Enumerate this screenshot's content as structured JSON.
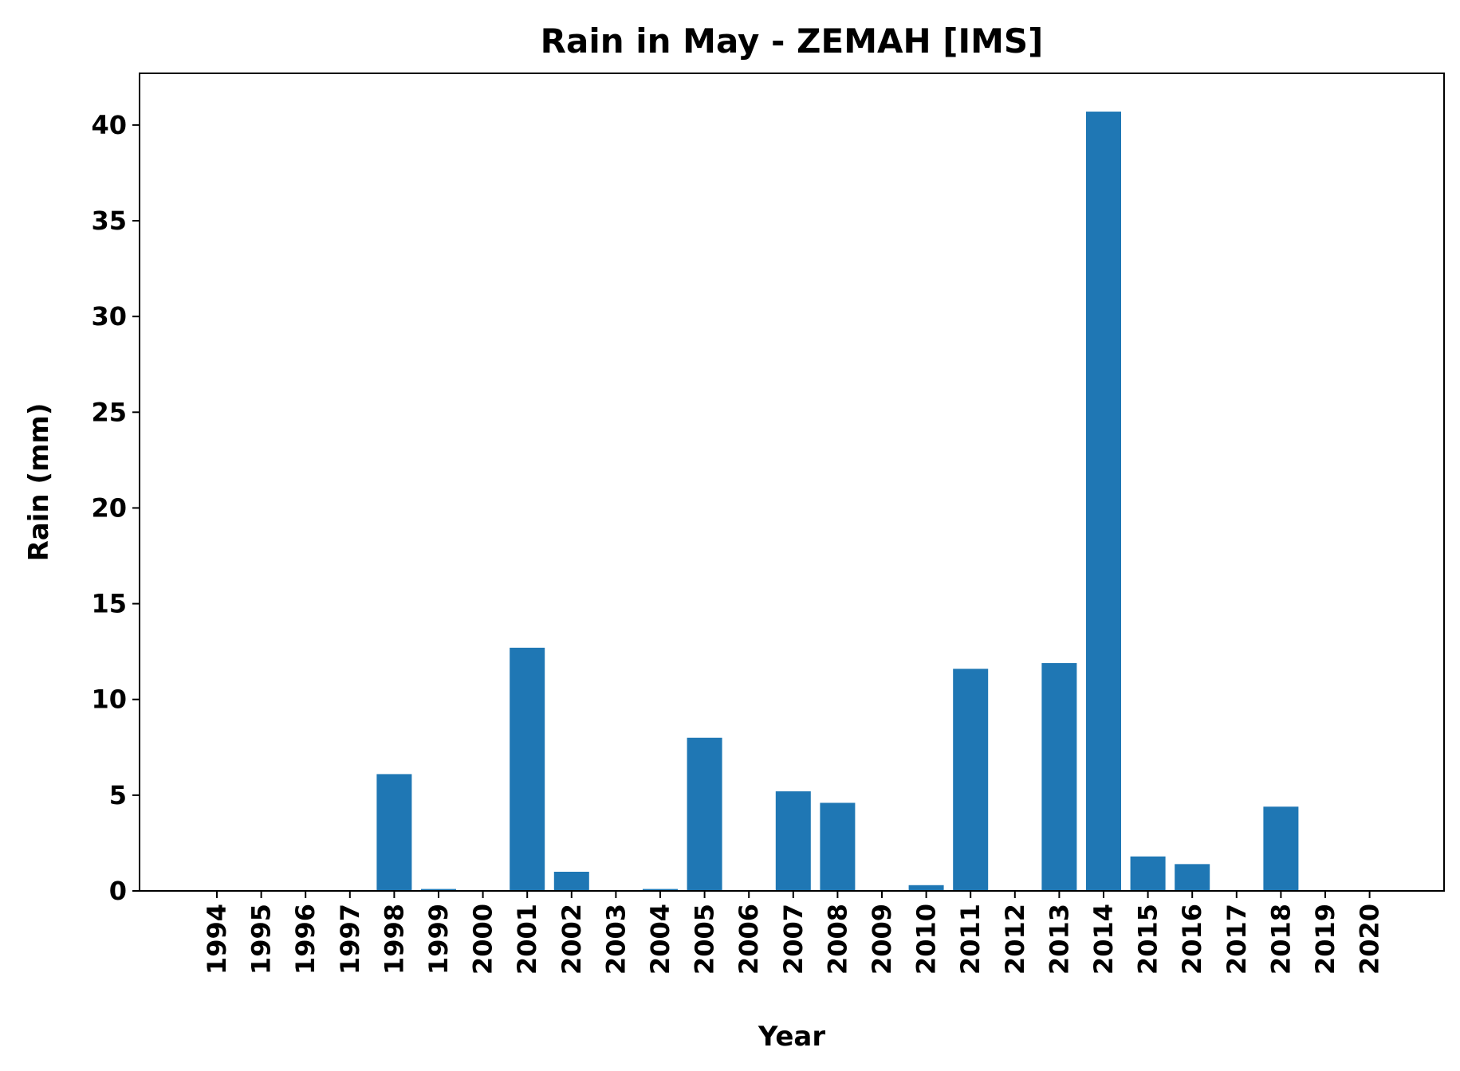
{
  "chart_data": {
    "type": "bar",
    "title": "Rain in May - ZEMAH [IMS]",
    "xlabel": "Year",
    "ylabel": "Rain (mm)",
    "categories": [
      "1994",
      "1995",
      "1996",
      "1997",
      "1998",
      "1999",
      "2000",
      "2001",
      "2002",
      "2003",
      "2004",
      "2005",
      "2006",
      "2007",
      "2008",
      "2009",
      "2010",
      "2011",
      "2012",
      "2013",
      "2014",
      "2015",
      "2016",
      "2017",
      "2018",
      "2019",
      "2020"
    ],
    "values": [
      0,
      0,
      0,
      0,
      6.1,
      0.1,
      0,
      12.7,
      1.0,
      0,
      0.1,
      8.0,
      0,
      5.2,
      4.6,
      0,
      0.3,
      11.6,
      0,
      11.9,
      40.7,
      1.8,
      1.4,
      0,
      4.4,
      0,
      0
    ],
    "ylim": [
      0,
      42.7
    ],
    "yticks": [
      0,
      5,
      10,
      15,
      20,
      25,
      30,
      35,
      40
    ],
    "bar_color": "#1f77b4",
    "grid": false,
    "legend": "none"
  }
}
